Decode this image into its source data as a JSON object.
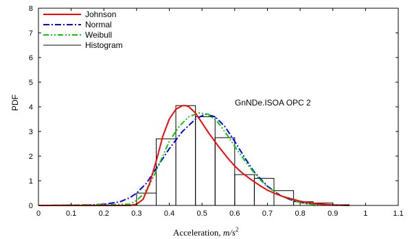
{
  "chart_data": {
    "type": "line",
    "title": "",
    "annotation": "GnNDe.ISOA OPC 2",
    "ylabel": "PDF",
    "xlabel_text": "Acceleration, ",
    "xlabel_unit_base": "m/s",
    "xlabel_unit_exp": "2",
    "xlim": [
      0,
      1.1
    ],
    "ylim": [
      0,
      8
    ],
    "xticks": [
      0,
      0.1,
      0.2,
      0.3,
      0.4,
      0.5,
      0.6,
      0.7,
      0.8,
      0.9,
      1,
      1.1
    ],
    "xtick_labels": [
      "0",
      "0.1",
      "0.2",
      "0.3",
      "0.4",
      "0.5",
      "0.6",
      "0.7",
      "0.8",
      "0.9",
      "1",
      "1.1"
    ],
    "yticks": [
      0,
      1,
      2,
      3,
      4,
      5,
      6,
      7,
      8
    ],
    "ytick_labels": [
      "0",
      "1",
      "2",
      "3",
      "4",
      "5",
      "6",
      "7",
      "8"
    ],
    "legend_position": "top-left",
    "histogram": {
      "name": "Histogram",
      "color": "#000000",
      "bin_edges": [
        0.3,
        0.36,
        0.42,
        0.48,
        0.54,
        0.6,
        0.66,
        0.72,
        0.78,
        0.84,
        0.9,
        0.95
      ],
      "heights": [
        0.5,
        2.7,
        4.05,
        3.6,
        2.75,
        1.25,
        1.1,
        0.6,
        0.15,
        0.1,
        0.03
      ]
    },
    "series": [
      {
        "name": "Johnson",
        "color": "#ff0000",
        "dash": "solid",
        "x": [
          0,
          0.28,
          0.3,
          0.32,
          0.34,
          0.36,
          0.38,
          0.4,
          0.42,
          0.44,
          0.45,
          0.46,
          0.48,
          0.5,
          0.52,
          0.55,
          0.58,
          0.6,
          0.62,
          0.65,
          0.68,
          0.7,
          0.72,
          0.75,
          0.8,
          0.85,
          0.9,
          0.95
        ],
        "y": [
          0,
          0,
          0.05,
          0.25,
          0.9,
          1.8,
          2.8,
          3.5,
          3.9,
          4.05,
          4.05,
          4.0,
          3.75,
          3.35,
          2.95,
          2.4,
          1.9,
          1.6,
          1.35,
          1.05,
          0.78,
          0.62,
          0.5,
          0.35,
          0.17,
          0.07,
          0.02,
          0
        ]
      },
      {
        "name": "Normal",
        "color": "#0000ff",
        "dash": "dash-dot",
        "x": [
          0,
          0.15,
          0.2,
          0.25,
          0.28,
          0.3,
          0.33,
          0.36,
          0.4,
          0.44,
          0.48,
          0.51,
          0.54,
          0.57,
          0.6,
          0.63,
          0.66,
          0.7,
          0.74,
          0.78,
          0.82,
          0.86,
          0.9,
          0.95
        ],
        "y": [
          0,
          0.01,
          0.05,
          0.15,
          0.32,
          0.5,
          0.9,
          1.5,
          2.3,
          3.0,
          3.5,
          3.7,
          3.6,
          3.2,
          2.6,
          1.95,
          1.35,
          0.78,
          0.4,
          0.18,
          0.08,
          0.03,
          0.01,
          0
        ]
      },
      {
        "name": "Weibull",
        "color": "#00cc00",
        "dash": "dash-dot-dot",
        "x": [
          0,
          0.28,
          0.3,
          0.32,
          0.34,
          0.36,
          0.38,
          0.4,
          0.43,
          0.46,
          0.49,
          0.52,
          0.55,
          0.58,
          0.61,
          0.64,
          0.67,
          0.7,
          0.74,
          0.78,
          0.82,
          0.86,
          0.9,
          0.95
        ],
        "y": [
          0,
          0.05,
          0.2,
          0.45,
          0.85,
          1.4,
          2.0,
          2.6,
          3.2,
          3.6,
          3.75,
          3.7,
          3.35,
          2.8,
          2.2,
          1.65,
          1.15,
          0.75,
          0.4,
          0.18,
          0.07,
          0.02,
          0.01,
          0
        ]
      }
    ]
  }
}
